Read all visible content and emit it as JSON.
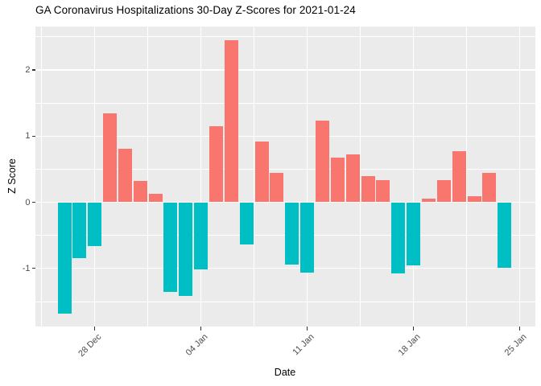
{
  "title": "GA Coronavirus Hospitalizations 30-Day Z-Scores for 2021-01-24",
  "chart_data": {
    "type": "bar",
    "title": "GA Coronavirus Hospitalizations 30-Day Z-Scores for 2021-01-24",
    "xlabel": "Date",
    "ylabel": "Z Score",
    "x": [
      "2020-12-26",
      "2020-12-27",
      "2020-12-28",
      "2020-12-29",
      "2020-12-30",
      "2020-12-31",
      "2021-01-01",
      "2021-01-02",
      "2021-01-03",
      "2021-01-04",
      "2021-01-05",
      "2021-01-06",
      "2021-01-07",
      "2021-01-08",
      "2021-01-09",
      "2021-01-10",
      "2021-01-11",
      "2021-01-12",
      "2021-01-13",
      "2021-01-14",
      "2021-01-15",
      "2021-01-16",
      "2021-01-17",
      "2021-01-18",
      "2021-01-19",
      "2021-01-20",
      "2021-01-21",
      "2021-01-22",
      "2021-01-23",
      "2021-01-24"
    ],
    "values": [
      -1.68,
      -0.85,
      -0.66,
      1.34,
      0.81,
      0.32,
      0.13,
      -1.35,
      -1.41,
      -1.02,
      1.15,
      2.45,
      -0.64,
      0.92,
      0.44,
      -0.94,
      -1.06,
      1.23,
      0.67,
      0.72,
      0.39,
      0.33,
      -1.08,
      -0.95,
      0.05,
      0.33,
      0.77,
      0.09,
      0.44,
      -0.99
    ],
    "x_tick_labels": [
      "28 Dec",
      "04 Jan",
      "11 Jan",
      "18 Jan",
      "25 Jan"
    ],
    "x_tick_day_index": [
      2,
      9,
      16,
      23,
      30
    ],
    "y_ticks": [
      -1,
      0,
      1,
      2
    ],
    "y_minor_ticks": [
      -1.5,
      -0.5,
      0.5,
      1.5,
      2.5
    ],
    "ylim": [
      -1.88,
      2.66
    ],
    "grid": true,
    "legend_position": "none",
    "colors": {
      "positive": "#F8766D",
      "negative": "#00BFC4",
      "panel_background": "#EBEBEB",
      "gridline": "#FFFFFF",
      "tick_text": "#4D4D4D",
      "title_text": "#000000",
      "tick_mark": "#333333",
      "figure_background": "#FFFFFF"
    }
  }
}
